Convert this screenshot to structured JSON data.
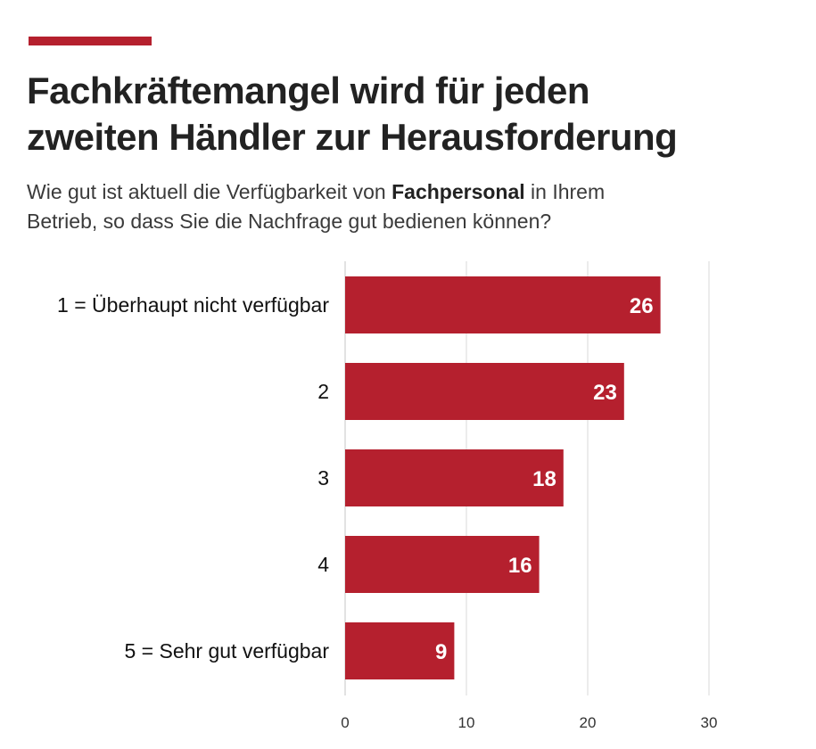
{
  "header": {
    "title_line1": "Fachkräftemangel wird für jeden",
    "title_line2": "zweiten Händler zur Herausforderung",
    "subtitle_part1": "Wie gut ist aktuell die Verfügbarkeit von ",
    "subtitle_bold": "Fachpersonal",
    "subtitle_part2": " in Ihrem",
    "subtitle_line2": "Betrieb, so dass Sie die Nachfrage gut bedienen können?"
  },
  "colors": {
    "accent": "#b5202e",
    "bar": "#b5202e",
    "grid": "#d9d9d9"
  },
  "chart_data": {
    "type": "bar",
    "orientation": "horizontal",
    "title": "Fachkräftemangel wird für jeden zweiten Händler zur Herausforderung",
    "subtitle": "Wie gut ist aktuell die Verfügbarkeit von Fachpersonal in Ihrem Betrieb, so dass Sie die Nachfrage gut bedienen können?",
    "categories": [
      "1 = Überhaupt nicht verfügbar",
      "2",
      "3",
      "4",
      "5 = Sehr gut verfügbar"
    ],
    "values": [
      26,
      23,
      18,
      16,
      9
    ],
    "value_labels": [
      "26",
      "23",
      "18",
      "16",
      "9"
    ],
    "xlim": [
      0,
      30
    ],
    "xticks": [
      0,
      10,
      20,
      30
    ],
    "xtick_labels": [
      "0",
      "10",
      "20",
      "30"
    ],
    "grid": true,
    "xlabel": "",
    "ylabel": ""
  }
}
